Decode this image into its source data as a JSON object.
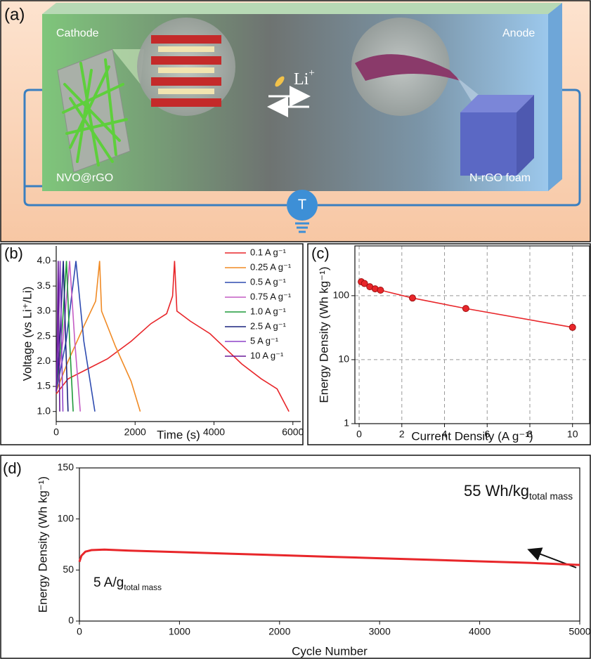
{
  "diagram": {
    "panel_label": "(a)",
    "cathode": "Cathode",
    "anode": "Anode",
    "ion": {
      "base": "Li",
      "sup": "+"
    },
    "cathode_material": "NVO@rGO",
    "anode_material": "N-rGO foam",
    "bulb_label": "T"
  },
  "chart_data": [
    {
      "type": "line",
      "panel_label": "(b)",
      "x_label": "Time (s)",
      "y_label": "Voltage (vs Li⁺/Li)",
      "xlim": [
        0,
        6200
      ],
      "ylim": [
        0.8,
        4.3
      ],
      "xticks": [
        0,
        2000,
        4000,
        6000
      ],
      "yticks": [
        {
          "value": 1,
          "label": "1.0"
        },
        1.5,
        {
          "value": 2,
          "label": "2.0"
        },
        2.5,
        {
          "value": 3,
          "label": "3.0"
        },
        3.5,
        {
          "value": 4,
          "label": "4.0"
        }
      ],
      "legend": "upper right",
      "series": [
        {
          "name": "0.1 A g⁻¹",
          "color": "#e8262a",
          "x": [
            0,
            300,
            800,
            1300,
            1900,
            2400,
            2800,
            2950,
            3000,
            3060,
            3400,
            3900,
            4300,
            4700,
            5200,
            5600,
            5900
          ],
          "values": [
            1.35,
            1.65,
            1.85,
            2.05,
            2.4,
            2.75,
            2.95,
            3.3,
            4.0,
            3.0,
            2.8,
            2.55,
            2.25,
            1.95,
            1.65,
            1.45,
            1.0
          ]
        },
        {
          "name": "0.25 A g⁻¹",
          "color": "#f08a24",
          "x": [
            0,
            300,
            700,
            1000,
            1100,
            1150,
            1500,
            1900,
            2130
          ],
          "values": [
            1.4,
            2.0,
            2.7,
            3.2,
            4.0,
            3.0,
            2.3,
            1.6,
            1.0
          ]
        },
        {
          "name": "0.5 A g⁻¹",
          "color": "#2e4bb0",
          "x": [
            0,
            250,
            500,
            700,
            980
          ],
          "values": [
            1.4,
            2.4,
            4.0,
            2.4,
            1.0
          ]
        },
        {
          "name": "0.75 A g⁻¹",
          "color": "#c45cc4",
          "x": [
            0,
            170,
            340,
            470,
            610
          ],
          "values": [
            1.4,
            2.4,
            4.0,
            2.4,
            1.0
          ]
        },
        {
          "name": "1.0 A g⁻¹",
          "color": "#1f9a3a",
          "x": [
            0,
            130,
            260,
            340,
            430
          ],
          "values": [
            1.4,
            2.4,
            4.0,
            2.4,
            1.0
          ]
        },
        {
          "name": "2.5 A g⁻¹",
          "color": "#1a237e",
          "x": [
            0,
            90,
            180,
            240,
            300
          ],
          "values": [
            1.4,
            2.4,
            4.0,
            2.4,
            1.0
          ]
        },
        {
          "name": "5 A g⁻¹",
          "color": "#8e44c8",
          "x": [
            0,
            50,
            100,
            135,
            170
          ],
          "values": [
            1.4,
            2.4,
            4.0,
            2.4,
            1.0
          ]
        },
        {
          "name": "10 A g⁻¹",
          "color": "#6a1b9a",
          "x": [
            0,
            25,
            50,
            70,
            90
          ],
          "values": [
            1.4,
            2.4,
            4.0,
            2.4,
            1.0
          ]
        }
      ]
    },
    {
      "type": "line",
      "panel_label": "(c)",
      "x_label": "Current Density (A g⁻¹)",
      "y_label": "Energy Density (Wh kg⁻¹)",
      "log_y": true,
      "grid": true,
      "markers": true,
      "xlim": [
        -0.2,
        10.8
      ],
      "ylim": [
        1,
        600
      ],
      "xticks": [
        0,
        2,
        4,
        6,
        8,
        10
      ],
      "yticks": [
        1,
        10,
        100
      ],
      "series": [
        {
          "color": "#e8262a",
          "x": [
            0.1,
            0.25,
            0.5,
            0.75,
            1.0,
            2.5,
            5,
            10
          ],
          "values": [
            165,
            155,
            138,
            128,
            122,
            92,
            63,
            32
          ]
        }
      ]
    },
    {
      "type": "line",
      "panel_label": "(d)",
      "x_label": "Cycle Number",
      "y_label": "Energy Density (Wh kg⁻¹)",
      "xlim": [
        0,
        5000
      ],
      "ylim": [
        0,
        150
      ],
      "xticks": [
        0,
        1000,
        2000,
        3000,
        4000,
        5000
      ],
      "yticks": [
        0,
        50,
        100,
        150
      ],
      "series": [
        {
          "color": "#e8262a",
          "x": [
            0,
            20,
            60,
            120,
            250,
            500,
            1000,
            1500,
            2000,
            2500,
            3000,
            3500,
            4000,
            4500,
            5000
          ],
          "values": [
            58,
            64,
            68,
            69.5,
            70,
            69,
            67.5,
            66,
            64.5,
            63,
            61.5,
            60,
            58.5,
            57,
            55
          ]
        }
      ],
      "annotations": [
        {
          "text": "55 Wh/kg",
          "sub": "total mass"
        },
        {
          "text": "5 A/g",
          "sub": "total mass"
        }
      ]
    }
  ]
}
